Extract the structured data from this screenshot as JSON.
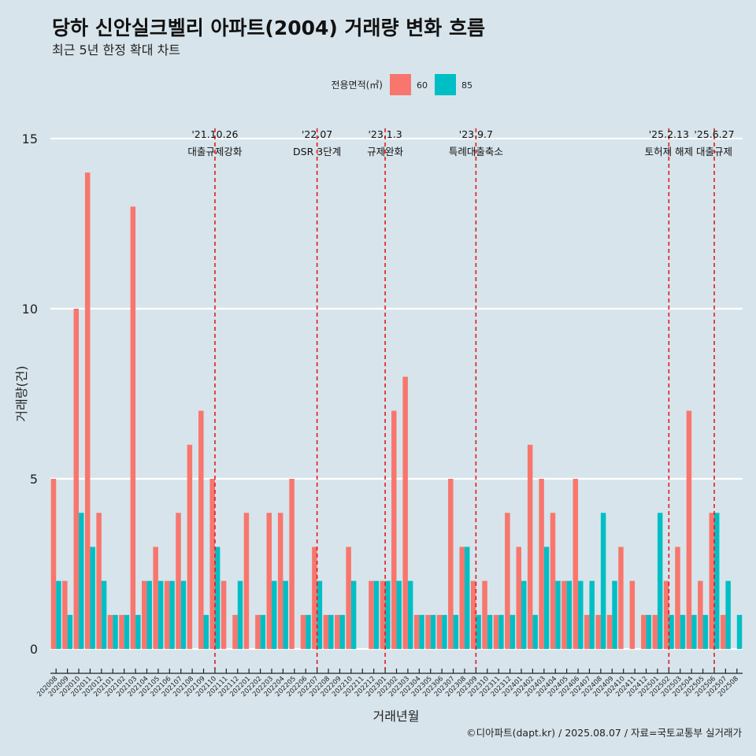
{
  "chart_data": {
    "type": "bar",
    "title": "당하 신안실크벨리 아파트(2004) 거래량 변화 흐름",
    "subtitle": "최근 5년 한정 확대 차트",
    "xlabel": "거래년월",
    "ylabel": "거래량(건)",
    "caption": "©디아파트(dapt.kr) / 2025.08.07 / 자료=국토교통부 실거래가",
    "ylim": [
      -0.6,
      15.6
    ],
    "y_ticks": [
      "0",
      "5",
      "10",
      "15"
    ],
    "grid": "horizontal",
    "legend": {
      "title": "전용면적(㎡)",
      "position": "top",
      "entries": [
        {
          "label": "60",
          "color": "#f8766d"
        },
        {
          "label": "85",
          "color": "#00bfc4"
        }
      ]
    },
    "categories": [
      "202008",
      "202009",
      "202010",
      "202011",
      "202012",
      "202101",
      "202102",
      "202103",
      "202104",
      "202105",
      "202106",
      "202107",
      "202108",
      "202109",
      "202110",
      "202111",
      "202112",
      "202201",
      "202202",
      "202203",
      "202204",
      "202205",
      "202206",
      "202207",
      "202208",
      "202209",
      "202210",
      "202211",
      "202212",
      "202301",
      "202302",
      "202303",
      "202304",
      "202305",
      "202306",
      "202307",
      "202308",
      "202309",
      "202310",
      "202311",
      "202312",
      "202401",
      "202402",
      "202403",
      "202404",
      "202405",
      "202406",
      "202407",
      "202408",
      "202409",
      "202410",
      "202411",
      "202412",
      "202501",
      "202502",
      "202503",
      "202504",
      "202505",
      "202506",
      "202507",
      "202508"
    ],
    "series": [
      {
        "name": "60",
        "color": "#f8766d",
        "values": [
          5,
          2,
          10,
          14,
          4,
          1,
          1,
          13,
          2,
          3,
          2,
          4,
          6,
          7,
          5,
          2,
          1,
          4,
          1,
          4,
          4,
          5,
          1,
          3,
          1,
          1,
          3,
          0,
          2,
          2,
          7,
          8,
          1,
          1,
          1,
          5,
          3,
          2,
          2,
          1,
          4,
          3,
          6,
          5,
          4,
          2,
          5,
          1,
          1,
          1,
          3,
          2,
          1,
          1,
          2,
          3,
          7,
          2,
          4,
          1,
          0
        ]
      },
      {
        "name": "85",
        "color": "#00bfc4",
        "values": [
          2,
          1,
          4,
          3,
          2,
          1,
          1,
          1,
          2,
          2,
          2,
          2,
          0,
          1,
          3,
          0,
          2,
          0,
          1,
          2,
          2,
          0,
          1,
          2,
          1,
          1,
          2,
          0,
          2,
          2,
          2,
          2,
          1,
          1,
          1,
          1,
          3,
          1,
          1,
          1,
          1,
          2,
          1,
          3,
          2,
          2,
          2,
          2,
          4,
          2,
          0,
          0,
          1,
          4,
          1,
          1,
          1,
          1,
          4,
          2,
          1
        ]
      }
    ],
    "events": [
      {
        "date": "202110",
        "line1": "'21.10.26",
        "line2": "대출규제강화"
      },
      {
        "date": "202207",
        "line1": "'22.07",
        "line2": "DSR 3단계"
      },
      {
        "date": "202301",
        "line1": "'23.1.3",
        "line2": "규제완화"
      },
      {
        "date": "202309",
        "line1": "'23.9.7",
        "line2": "특례대출축소"
      },
      {
        "date": "202502",
        "line1": "'25.2.13",
        "line2": "토허제 해제"
      },
      {
        "date": "202506",
        "line1": "'25.6.27",
        "line2": "대출규제"
      }
    ],
    "event_line_color": "#e41a1c"
  }
}
